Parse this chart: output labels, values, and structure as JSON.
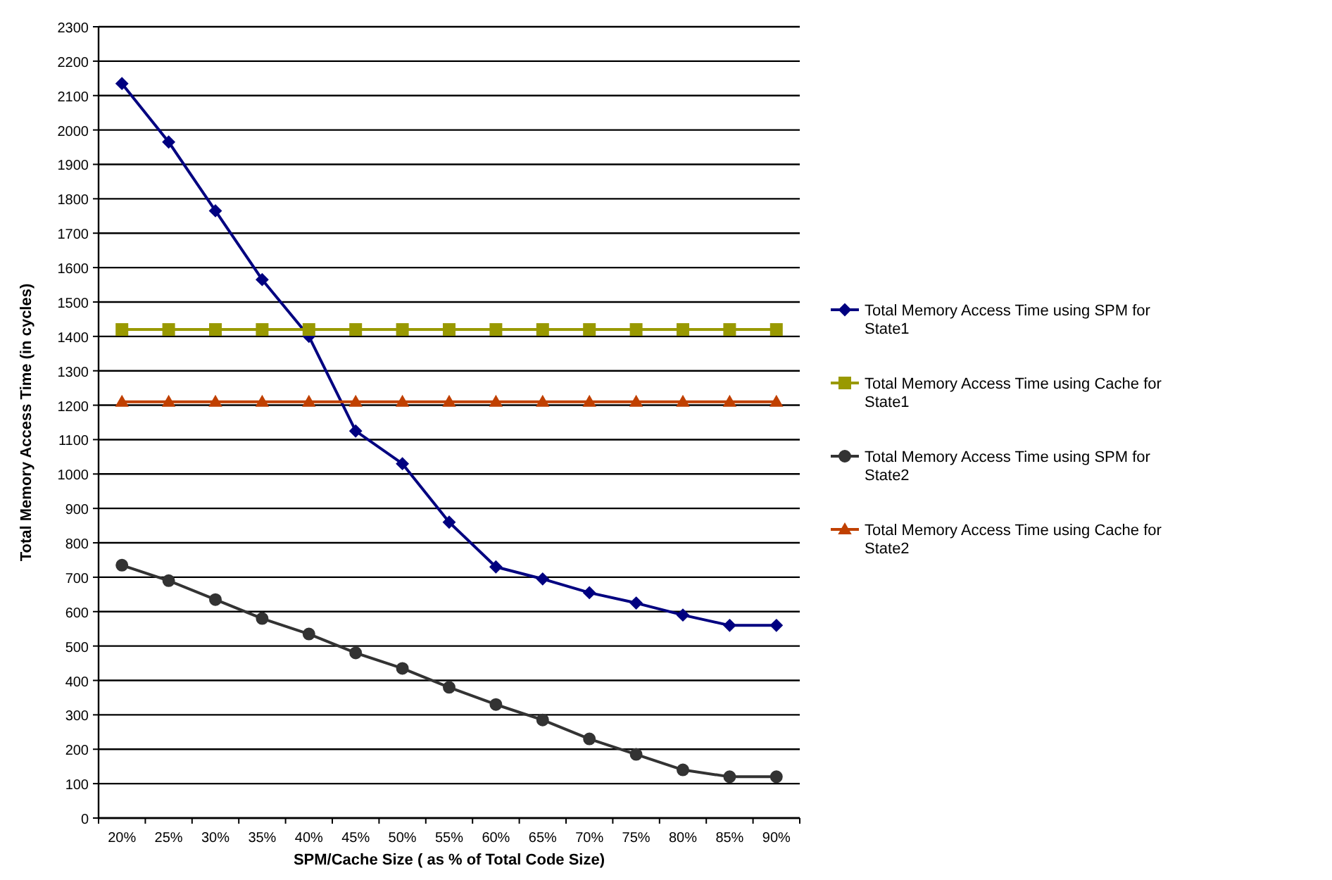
{
  "chart_data": {
    "type": "line",
    "xlabel": "SPM/Cache Size ( as % of Total Code Size)",
    "ylabel": "Total Memory Access Time (in cycles)",
    "categories": [
      "20%",
      "25%",
      "30%",
      "35%",
      "40%",
      "45%",
      "50%",
      "55%",
      "60%",
      "65%",
      "70%",
      "75%",
      "80%",
      "85%",
      "90%"
    ],
    "ylim": [
      0,
      2300
    ],
    "yticks": [
      0,
      100,
      200,
      300,
      400,
      500,
      600,
      700,
      800,
      900,
      1000,
      1100,
      1200,
      1300,
      1400,
      1500,
      1600,
      1700,
      1800,
      1900,
      2000,
      2100,
      2200,
      2300
    ],
    "grid": "y",
    "legend": "right",
    "line_style": "solid",
    "series": [
      {
        "name": "Total Memory Access Time using SPM for State1",
        "color": "#000080",
        "marker": "diamond",
        "values": [
          2135,
          1965,
          1765,
          1565,
          1400,
          1125,
          1030,
          860,
          730,
          695,
          655,
          625,
          590,
          560,
          560
        ]
      },
      {
        "name": "Total Memory Access Time using Cache for State1",
        "color": "#999900",
        "marker": "square",
        "values": [
          1420,
          1420,
          1420,
          1420,
          1420,
          1420,
          1420,
          1420,
          1420,
          1420,
          1420,
          1420,
          1420,
          1420,
          1420
        ]
      },
      {
        "name": "Total Memory Access Time using SPM for State2",
        "color": "#333333",
        "marker": "circle",
        "values": [
          735,
          690,
          635,
          580,
          535,
          480,
          435,
          380,
          330,
          285,
          230,
          185,
          140,
          120,
          120
        ]
      },
      {
        "name": "Total Memory Access Time using Cache for State2",
        "color": "#c04000",
        "marker": "triangle",
        "values": [
          1210,
          1210,
          1210,
          1210,
          1210,
          1210,
          1210,
          1210,
          1210,
          1210,
          1210,
          1210,
          1210,
          1210,
          1210
        ]
      }
    ]
  }
}
